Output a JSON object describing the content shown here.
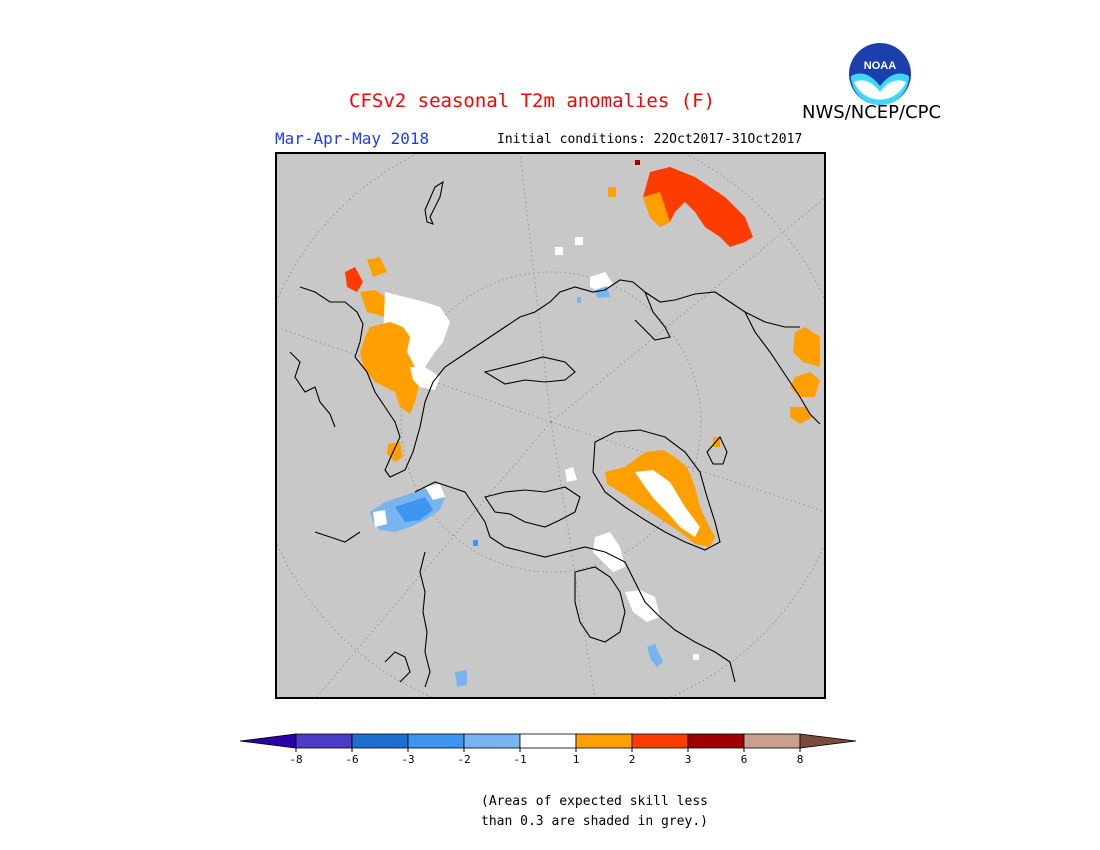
{
  "header": {
    "title": "CFSv2 seasonal T2m anomalies (F)",
    "agency": "NWS/NCEP/CPC",
    "logo_text": "NOAA",
    "period": "Mar-Apr-May 2018",
    "initial_conditions": "Initial conditions: 22Oct2017-31Oct2017"
  },
  "map": {
    "projection": "north-polar-stereographic",
    "background_color": "#c8c8c8",
    "coastline_color": "#000000",
    "graticule": "dotted"
  },
  "colorbar": {
    "tick_labels": [
      "-8",
      "-6",
      "-3",
      "-2",
      "-1",
      "1",
      "2",
      "3",
      "6",
      "8"
    ],
    "colors": [
      "#2a00a8",
      "#4a3cc8",
      "#1e6ed2",
      "#3c96f0",
      "#78b4f0",
      "#ffffff",
      "#ffa000",
      "#ff3c00",
      "#a00000",
      "#c8a090",
      "#7a4a3a"
    ]
  },
  "note": {
    "line1": "(Areas of expected skill less",
    "line2": "than 0.3 are shaded in grey.)"
  }
}
